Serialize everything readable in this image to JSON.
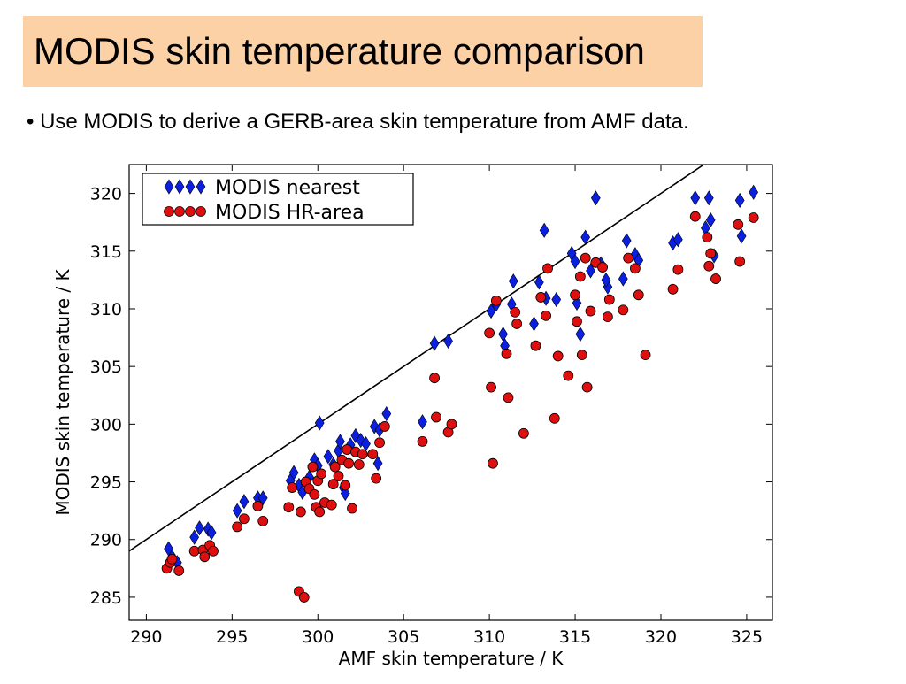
{
  "slide": {
    "title": "MODIS skin temperature comparison",
    "bullet": "• Use MODIS to derive a GERB-area skin temperature from AMF data."
  },
  "colors": {
    "title_background": "#fcd1a6",
    "modis_nearest": "#0a1fe0",
    "modis_hr_area": "#e00f0f"
  },
  "chart_data": {
    "type": "scatter",
    "xlabel": "AMF skin temperature / K",
    "ylabel": "MODIS skin temperature / K",
    "xlim": [
      289,
      326.5
    ],
    "ylim": [
      283,
      322.5
    ],
    "xticks": [
      290,
      295,
      300,
      305,
      310,
      315,
      320,
      325
    ],
    "yticks": [
      285,
      290,
      295,
      300,
      305,
      310,
      315,
      320
    ],
    "grid": false,
    "legend_position": "top-left",
    "reference_line": {
      "type": "1:1",
      "points": [
        [
          289,
          289
        ],
        [
          322.5,
          322.5
        ]
      ]
    },
    "series": [
      {
        "name": "MODIS nearest",
        "marker": "diamond",
        "color": "#0a1fe0",
        "points": [
          [
            291.3,
            289.2
          ],
          [
            291.5,
            288.5
          ],
          [
            291.8,
            288.0
          ],
          [
            292.8,
            290.2
          ],
          [
            293.1,
            291.0
          ],
          [
            293.6,
            290.9
          ],
          [
            293.8,
            290.6
          ],
          [
            295.3,
            292.5
          ],
          [
            295.7,
            293.3
          ],
          [
            296.5,
            293.6
          ],
          [
            296.8,
            293.6
          ],
          [
            298.4,
            295.1
          ],
          [
            298.6,
            295.8
          ],
          [
            298.9,
            294.7
          ],
          [
            299.1,
            294.1
          ],
          [
            299.5,
            295.4
          ],
          [
            299.8,
            296.9
          ],
          [
            300.0,
            296.4
          ],
          [
            300.1,
            300.1
          ],
          [
            300.6,
            297.2
          ],
          [
            300.9,
            296.5
          ],
          [
            301.2,
            297.7
          ],
          [
            301.3,
            298.5
          ],
          [
            301.5,
            294.5
          ],
          [
            301.6,
            294.0
          ],
          [
            301.9,
            298.2
          ],
          [
            302.2,
            299.0
          ],
          [
            302.5,
            298.6
          ],
          [
            302.8,
            298.3
          ],
          [
            303.3,
            299.8
          ],
          [
            303.5,
            296.6
          ],
          [
            303.6,
            299.5
          ],
          [
            304.0,
            300.9
          ],
          [
            306.1,
            300.2
          ],
          [
            306.8,
            307.0
          ],
          [
            307.6,
            307.2
          ],
          [
            310.1,
            309.8
          ],
          [
            310.4,
            310.4
          ],
          [
            310.8,
            307.8
          ],
          [
            310.9,
            306.8
          ],
          [
            311.3,
            310.4
          ],
          [
            311.4,
            312.4
          ],
          [
            312.6,
            308.7
          ],
          [
            312.9,
            312.3
          ],
          [
            313.2,
            316.8
          ],
          [
            313.3,
            310.9
          ],
          [
            313.9,
            310.8
          ],
          [
            314.8,
            314.8
          ],
          [
            315.0,
            314.1
          ],
          [
            315.1,
            310.5
          ],
          [
            315.3,
            307.8
          ],
          [
            315.6,
            316.2
          ],
          [
            315.9,
            313.3
          ],
          [
            316.2,
            319.6
          ],
          [
            316.5,
            313.9
          ],
          [
            316.9,
            311.9
          ],
          [
            316.8,
            312.5
          ],
          [
            317.8,
            312.6
          ],
          [
            318.0,
            315.9
          ],
          [
            318.5,
            314.7
          ],
          [
            318.7,
            314.2
          ],
          [
            320.7,
            315.7
          ],
          [
            321.0,
            316.0
          ],
          [
            322.0,
            319.6
          ],
          [
            322.6,
            317.0
          ],
          [
            322.8,
            319.6
          ],
          [
            322.9,
            317.7
          ],
          [
            323.1,
            314.6
          ],
          [
            324.6,
            319.4
          ],
          [
            324.7,
            316.3
          ],
          [
            325.4,
            320.1
          ]
        ]
      },
      {
        "name": "MODIS HR-area",
        "marker": "circle",
        "color": "#e00f0f",
        "points": [
          [
            291.2,
            287.5
          ],
          [
            291.4,
            288.0
          ],
          [
            291.5,
            288.3
          ],
          [
            291.9,
            287.3
          ],
          [
            292.8,
            289.0
          ],
          [
            293.3,
            289.1
          ],
          [
            293.4,
            288.5
          ],
          [
            293.7,
            289.5
          ],
          [
            293.9,
            289.0
          ],
          [
            295.3,
            291.1
          ],
          [
            295.7,
            291.8
          ],
          [
            296.5,
            292.9
          ],
          [
            296.8,
            291.6
          ],
          [
            298.3,
            292.8
          ],
          [
            298.5,
            294.5
          ],
          [
            298.9,
            285.5
          ],
          [
            299.0,
            292.4
          ],
          [
            299.2,
            285.0
          ],
          [
            299.3,
            295.0
          ],
          [
            299.5,
            294.4
          ],
          [
            299.7,
            296.3
          ],
          [
            299.8,
            293.9
          ],
          [
            299.9,
            292.8
          ],
          [
            300.0,
            295.1
          ],
          [
            300.1,
            292.4
          ],
          [
            300.2,
            295.7
          ],
          [
            300.4,
            293.2
          ],
          [
            300.8,
            293.0
          ],
          [
            300.9,
            294.8
          ],
          [
            301.0,
            296.3
          ],
          [
            301.2,
            295.5
          ],
          [
            301.4,
            296.9
          ],
          [
            301.6,
            294.7
          ],
          [
            301.7,
            297.8
          ],
          [
            301.8,
            296.6
          ],
          [
            302.0,
            292.7
          ],
          [
            302.2,
            297.6
          ],
          [
            302.4,
            296.5
          ],
          [
            302.6,
            297.4
          ],
          [
            303.2,
            297.4
          ],
          [
            303.4,
            295.3
          ],
          [
            303.6,
            298.4
          ],
          [
            303.9,
            299.8
          ],
          [
            306.1,
            298.5
          ],
          [
            306.8,
            304.0
          ],
          [
            306.9,
            300.6
          ],
          [
            307.6,
            299.3
          ],
          [
            307.8,
            300.0
          ],
          [
            310.0,
            307.9
          ],
          [
            310.1,
            303.2
          ],
          [
            310.2,
            296.6
          ],
          [
            310.4,
            310.7
          ],
          [
            311.0,
            306.1
          ],
          [
            311.1,
            302.3
          ],
          [
            311.5,
            309.7
          ],
          [
            311.6,
            308.7
          ],
          [
            312.0,
            299.2
          ],
          [
            312.7,
            306.8
          ],
          [
            313.0,
            311.0
          ],
          [
            313.3,
            309.4
          ],
          [
            313.4,
            313.5
          ],
          [
            313.8,
            300.5
          ],
          [
            314.0,
            305.9
          ],
          [
            314.6,
            304.2
          ],
          [
            315.0,
            311.2
          ],
          [
            315.1,
            308.9
          ],
          [
            315.3,
            312.8
          ],
          [
            315.4,
            306.0
          ],
          [
            315.6,
            314.4
          ],
          [
            315.7,
            303.2
          ],
          [
            315.9,
            309.8
          ],
          [
            316.2,
            314.0
          ],
          [
            316.6,
            313.6
          ],
          [
            316.9,
            309.3
          ],
          [
            317.0,
            310.8
          ],
          [
            317.8,
            309.9
          ],
          [
            318.1,
            314.4
          ],
          [
            318.5,
            313.5
          ],
          [
            318.7,
            311.2
          ],
          [
            319.1,
            306.0
          ],
          [
            320.7,
            311.7
          ],
          [
            321.0,
            313.4
          ],
          [
            322.0,
            318.0
          ],
          [
            322.7,
            316.2
          ],
          [
            322.8,
            313.7
          ],
          [
            322.9,
            314.8
          ],
          [
            323.2,
            312.6
          ],
          [
            324.5,
            317.3
          ],
          [
            324.6,
            314.1
          ],
          [
            325.4,
            317.9
          ]
        ]
      }
    ]
  }
}
